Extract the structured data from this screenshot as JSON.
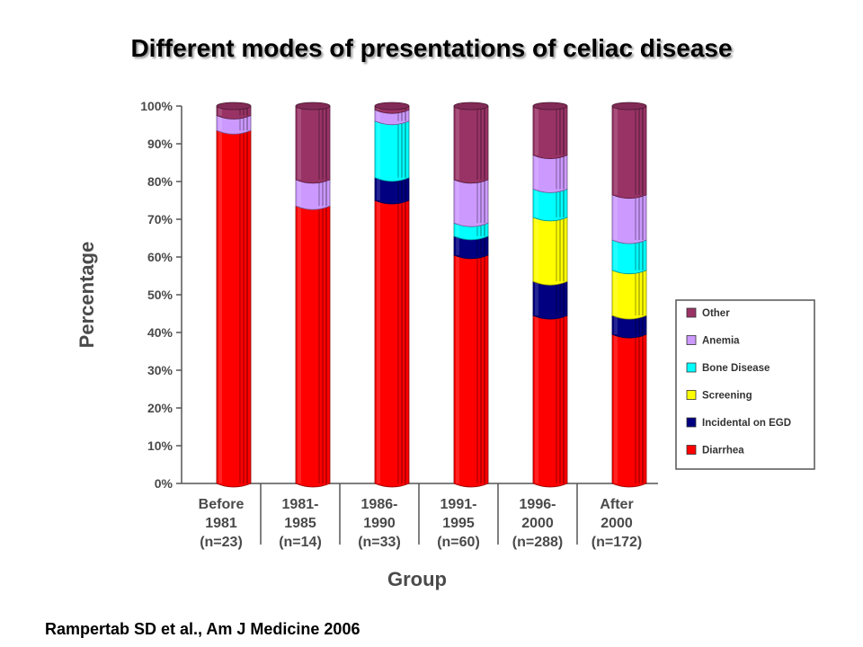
{
  "title": "Different modes of presentations of celiac disease",
  "citation": "Rampertab SD et al., Am J Medicine 2006",
  "chart_data": {
    "type": "bar",
    "stacked": true,
    "percent": true,
    "xlabel": "Group",
    "ylabel": "Percentage",
    "ylim": [
      0,
      100
    ],
    "yticks": [
      "0%",
      "10%",
      "20%",
      "30%",
      "40%",
      "50%",
      "60%",
      "70%",
      "80%",
      "90%",
      "100%"
    ],
    "categories": [
      [
        "Before",
        "1981",
        "(n=23)"
      ],
      [
        "1981-",
        "1985",
        "(n=14)"
      ],
      [
        "1986-",
        "1990",
        "(n=33)"
      ],
      [
        "1991-",
        "1995",
        "(n=60)"
      ],
      [
        "1996-",
        "2000",
        "(n=288)"
      ],
      [
        "After",
        "2000",
        "(n=172)"
      ]
    ],
    "series": [
      {
        "name": "Diarrhea",
        "color": "#ff0000",
        "values": [
          93.5,
          73.5,
          75,
          60.5,
          44.5,
          39.5
        ]
      },
      {
        "name": "Incidental on EGD",
        "color": "#000080",
        "values": [
          0,
          0,
          6,
          5,
          9,
          5
        ]
      },
      {
        "name": "Screening",
        "color": "#ffff00",
        "values": [
          0,
          0,
          0,
          0,
          17,
          12
        ]
      },
      {
        "name": "Bone Disease",
        "color": "#00ffff",
        "values": [
          0,
          0,
          15,
          3.5,
          7.5,
          8
        ]
      },
      {
        "name": "Anemia",
        "color": "#cc99ff",
        "values": [
          4,
          7,
          3,
          11.5,
          9,
          12
        ]
      },
      {
        "name": "Other",
        "color": "#993366",
        "values": [
          2.5,
          19.5,
          1,
          19.5,
          13,
          23.5
        ]
      }
    ],
    "legend_order": [
      "Other",
      "Anemia",
      "Bone Disease",
      "Screening",
      "Incidental on EGD",
      "Diarrhea"
    ],
    "legend_position": "right",
    "grid": false
  }
}
